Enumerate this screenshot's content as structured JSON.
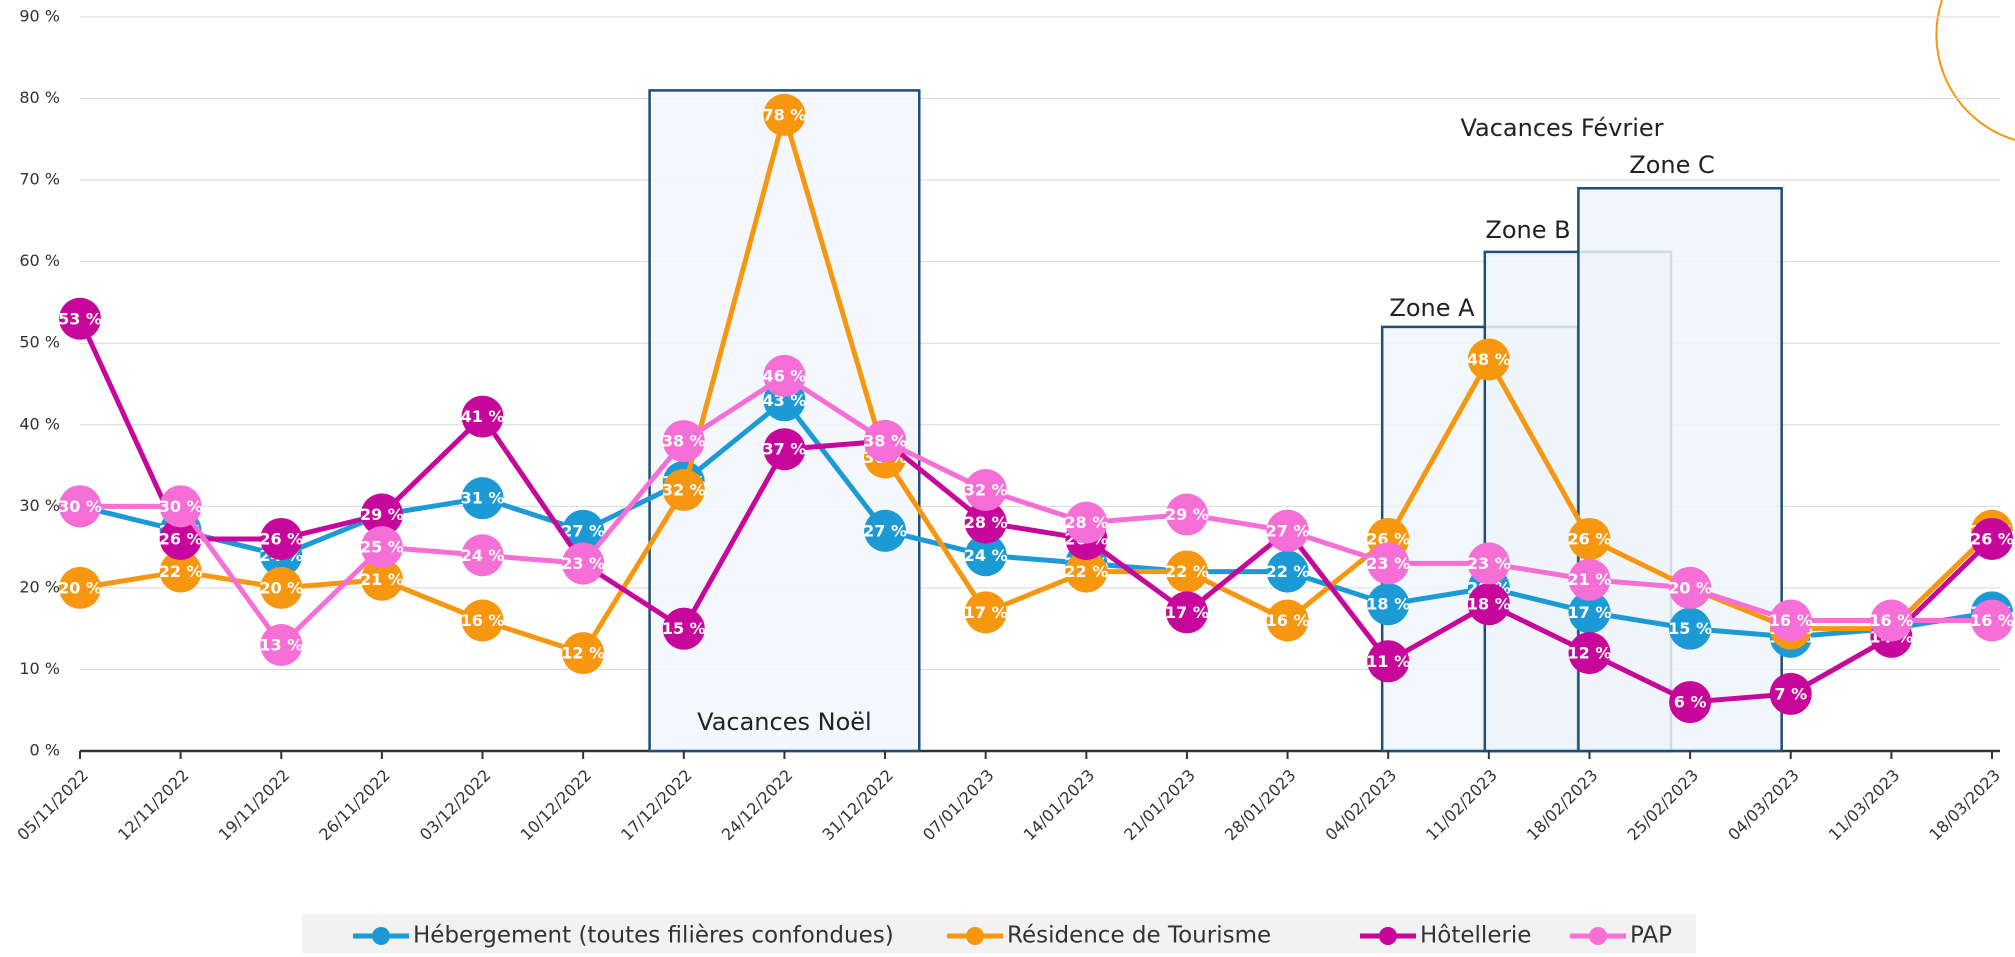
{
  "chart_data": {
    "type": "line",
    "categories": [
      "05/11/2022",
      "12/11/2022",
      "19/11/2022",
      "26/11/2022",
      "03/12/2022",
      "10/12/2022",
      "17/12/2022",
      "24/12/2022",
      "31/12/2022",
      "07/01/2023",
      "14/01/2023",
      "21/01/2023",
      "28/01/2023",
      "04/02/2023",
      "11/02/2023",
      "18/02/2023",
      "25/02/2023",
      "04/03/2023",
      "11/03/2023",
      "18/03/2023"
    ],
    "series": [
      {
        "name": "Hébergement (toutes filières confondues)",
        "color": "#1b9ad6",
        "values": [
          30,
          27,
          24,
          29,
          31,
          27,
          33,
          43,
          27,
          24,
          23,
          22,
          22,
          18,
          20,
          17,
          15,
          14,
          15,
          17
        ],
        "value_labels": [
          "30 %",
          "27 %",
          "24 %",
          "29 %",
          "31 %",
          "27 %",
          "33 %",
          "43 %",
          "27 %",
          "24 %",
          "23 %",
          "22 %",
          "22 %",
          "18 %",
          "20 %",
          "17 %",
          "15 %",
          "14 %",
          "15 %",
          "17 %"
        ]
      },
      {
        "name": "Résidence de Tourisme",
        "color": "#f7960f",
        "values": [
          20,
          22,
          20,
          21,
          16,
          12,
          32,
          78,
          36,
          17,
          22,
          22,
          16,
          26,
          48,
          26,
          20,
          15,
          15,
          27
        ],
        "value_labels": [
          "20 %",
          "22 %",
          "20 %",
          "21 %",
          "16 %",
          "12 %",
          "32 %",
          "78 %",
          "36 %",
          "17 %",
          "22 %",
          "22 %",
          "16 %",
          "26 %",
          "48 %",
          "26 %",
          "20 %",
          "15 %",
          "15 %",
          "27 %"
        ]
      },
      {
        "name": "Hôtellerie",
        "color": "#c7069b",
        "values": [
          53,
          26,
          26,
          29,
          41,
          23,
          15,
          37,
          38,
          28,
          26,
          17,
          27,
          11,
          18,
          12,
          6,
          7,
          14,
          26
        ],
        "value_labels": [
          "53 %",
          "26 %",
          "26 %",
          "29 %",
          "41 %",
          "23 %",
          "15 %",
          "37 %",
          "38 %",
          "28 %",
          "26 %",
          "17 %",
          "27 %",
          "11 %",
          "18 %",
          "12 %",
          "6 %",
          "7 %",
          "14 %",
          "26 %"
        ]
      },
      {
        "name": "PAP",
        "color": "#f66fd6",
        "values": [
          30,
          30,
          13,
          25,
          24,
          23,
          38,
          46,
          38,
          32,
          28,
          29,
          27,
          23,
          23,
          21,
          20,
          16,
          16,
          16
        ],
        "value_labels": [
          "30 %",
          "30 %",
          "13 %",
          "25 %",
          "24 %",
          "23 %",
          "38 %",
          "46 %",
          "38 %",
          "32 %",
          "28 %",
          "29 %",
          "27 %",
          "23 %",
          "23 %",
          "21 %",
          "20 %",
          "16 %",
          "16 %",
          "16 %"
        ]
      }
    ],
    "ylim": [
      0,
      90
    ],
    "yticks": [
      {
        "value": 0,
        "label": "0 %"
      },
      {
        "value": 10,
        "label": "10 %"
      },
      {
        "value": 20,
        "label": "20 %"
      },
      {
        "value": 30,
        "label": "30 %"
      },
      {
        "value": 40,
        "label": "40 %"
      },
      {
        "value": 50,
        "label": "50 %"
      },
      {
        "value": 60,
        "label": "60 %"
      },
      {
        "value": 70,
        "label": "70 %"
      },
      {
        "value": 80,
        "label": "80 %"
      },
      {
        "value": 90,
        "label": "90 %"
      }
    ],
    "grid": true,
    "legend": "bottom",
    "annotations": [
      "Vacances Noël",
      "Vacances Février",
      "Zone A",
      "Zone B",
      "Zone C"
    ]
  }
}
